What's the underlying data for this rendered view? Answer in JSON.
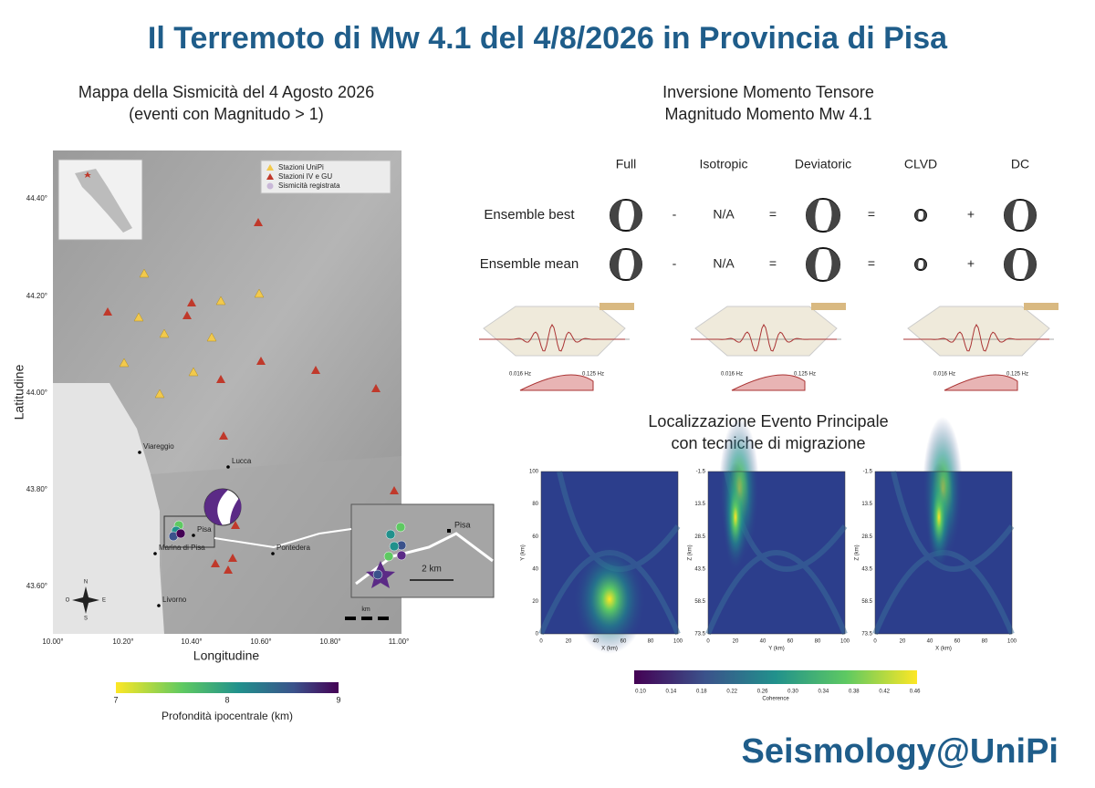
{
  "header": {
    "title": "Il Terremoto di Mw 4.1 del 4/8/2026 in Provincia di Pisa"
  },
  "map": {
    "title": [
      "Mappa della Sismicità del 4 Agosto 2026",
      "(eventi con Magnitudo > 1)"
    ],
    "y_label": "Latitudine",
    "x_label": "Longitudine",
    "lat_ticks": [
      "44.40°",
      "44.20°",
      "44.00°",
      "43.80°",
      "43.60°"
    ],
    "lon_ticks": [
      "10.00°",
      "10.20°",
      "10.40°",
      "10.60°",
      "10.80°",
      "11.00°"
    ],
    "legend": [
      "Stazioni UniPi",
      "Stazioni IV e GU",
      "Sismicità registrata"
    ],
    "places": [
      "Viareggio",
      "Lucca",
      "Pisa",
      "Pontedera",
      "Marina di Pisa",
      "Livorno"
    ],
    "inset": {
      "place": "Pisa",
      "scale": "2 km"
    },
    "compass": [
      "N",
      "E",
      "S",
      "O"
    ],
    "scale_unit": "km",
    "colorbar": {
      "ticks": [
        "7",
        "8",
        "9"
      ],
      "label": "Profondità ipocentrale (km)"
    }
  },
  "moment_tensor": {
    "title": [
      "Inversione Momento Tensore",
      "Magnitudo Momento Mw 4.1"
    ],
    "columns": [
      "Full",
      "Isotropic",
      "Deviatoric",
      "CLVD",
      "DC"
    ],
    "rows": [
      {
        "label": "Ensemble best",
        "isotropic": "N/A"
      },
      {
        "label": "Ensemble mean",
        "isotropic": "N/A"
      }
    ],
    "operators": [
      "-",
      "=",
      "=",
      "+"
    ],
    "waveforms": [
      {
        "freq": [
          "0.016 Hz",
          "0.125 Hz"
        ]
      },
      {
        "freq": [
          "0.016 Hz",
          "0.125 Hz"
        ]
      },
      {
        "freq": [
          "0.016 Hz",
          "0.125 Hz"
        ]
      }
    ]
  },
  "migration": {
    "title": [
      "Localizzazione Evento Principale",
      "con tecniche di migrazione"
    ],
    "panels": [
      {
        "x_label": "X (km)",
        "y_label": "Y (km)",
        "x_ticks": [
          0,
          20,
          40,
          60,
          80,
          100
        ],
        "y_ticks": [
          100,
          80,
          60,
          40,
          20,
          0
        ]
      },
      {
        "x_label": "Y (km)",
        "y_label": "Z (km)",
        "x_ticks": [
          0,
          20,
          40,
          60,
          80,
          100
        ],
        "y_ticks": [
          -1.5,
          13.5,
          28.5,
          43.5,
          58.5,
          73.5
        ]
      },
      {
        "x_label": "X (km)",
        "y_label": "Z (km)",
        "x_ticks": [
          0,
          20,
          40,
          60,
          80,
          100
        ],
        "y_ticks": [
          -1.5,
          13.5,
          28.5,
          43.5,
          58.5,
          73.5
        ]
      }
    ],
    "colorbar": {
      "ticks": [
        "0.10",
        "0.14",
        "0.18",
        "0.22",
        "0.26",
        "0.30",
        "0.34",
        "0.38",
        "0.42",
        "0.46"
      ],
      "label": "Coherence"
    }
  },
  "footer": {
    "brand": "Seismology@UniPi"
  }
}
